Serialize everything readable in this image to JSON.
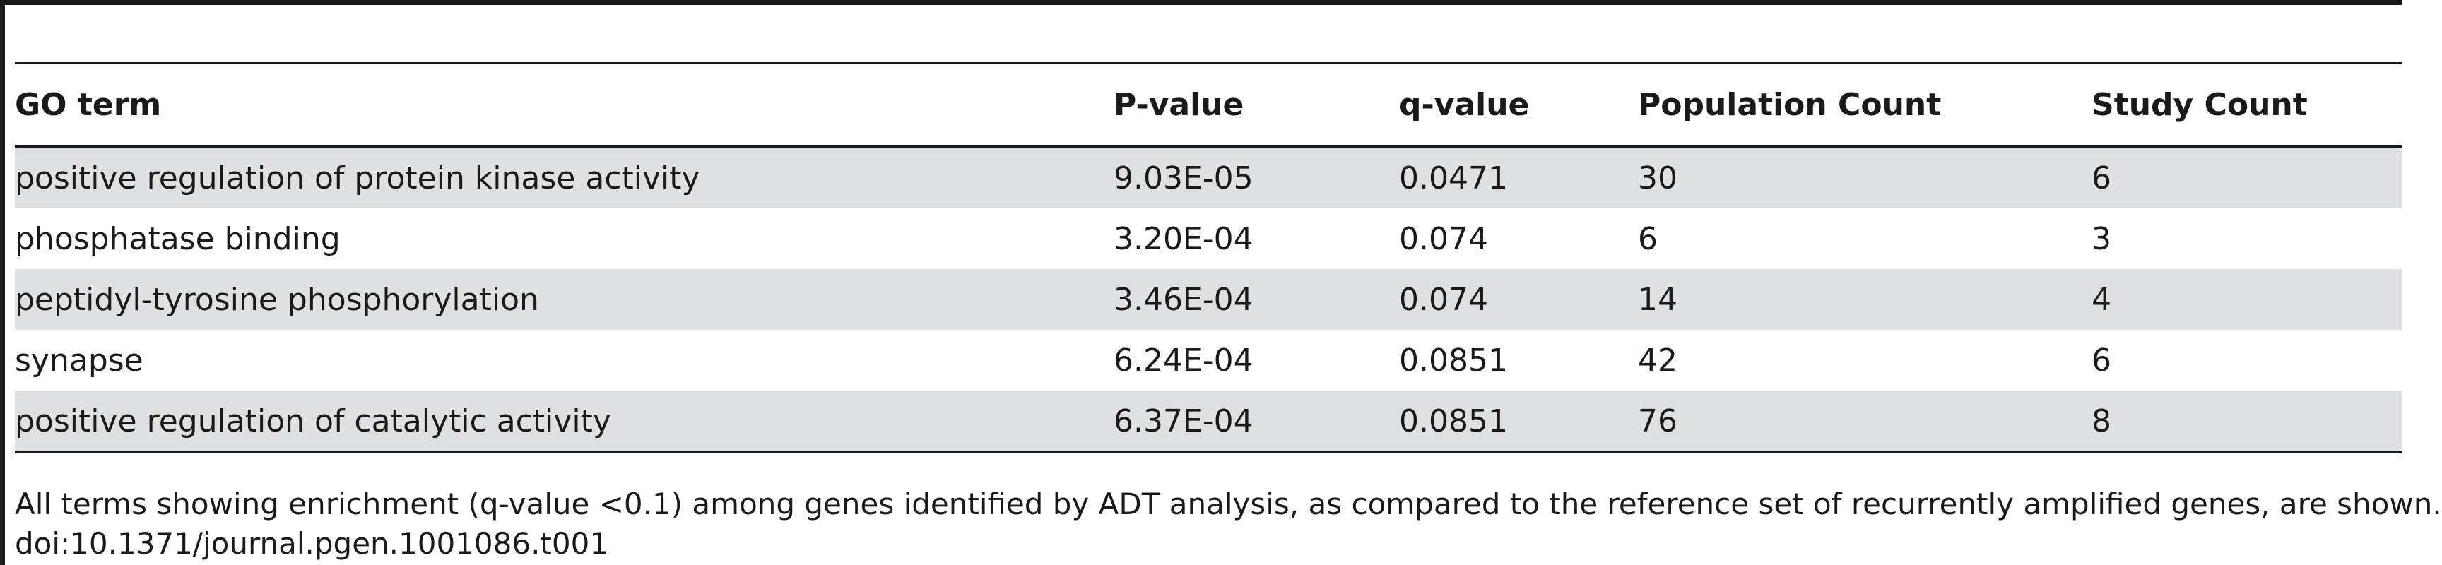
{
  "table": {
    "headers": [
      "GO term",
      "P-value",
      "q-value",
      "Population Count",
      "Study Count"
    ],
    "rows": [
      {
        "go_term": "positive regulation of protein kinase activity",
        "p_value": "9.03E-05",
        "q_value": "0.0471",
        "population_count": "30",
        "study_count": "6"
      },
      {
        "go_term": "phosphatase binding",
        "p_value": "3.20E-04",
        "q_value": "0.074",
        "population_count": "6",
        "study_count": "3"
      },
      {
        "go_term": "peptidyl-tyrosine phosphorylation",
        "p_value": "3.46E-04",
        "q_value": "0.074",
        "population_count": "14",
        "study_count": "4"
      },
      {
        "go_term": "synapse",
        "p_value": "6.24E-04",
        "q_value": "0.0851",
        "population_count": "42",
        "study_count": "6"
      },
      {
        "go_term": "positive regulation of catalytic activity",
        "p_value": "6.37E-04",
        "q_value": "0.0851",
        "population_count": "76",
        "study_count": "8"
      }
    ]
  },
  "footnote": "All terms showing enrichment (q-value <0.1) among genes identified by ADT analysis, as compared to the reference set of recurrently amplified genes, are shown.",
  "doi": "doi:10.1371/journal.pgen.1001086.t001",
  "colors": {
    "rule": "#1a1a1a",
    "shaded_row": "#dfe0e1"
  }
}
